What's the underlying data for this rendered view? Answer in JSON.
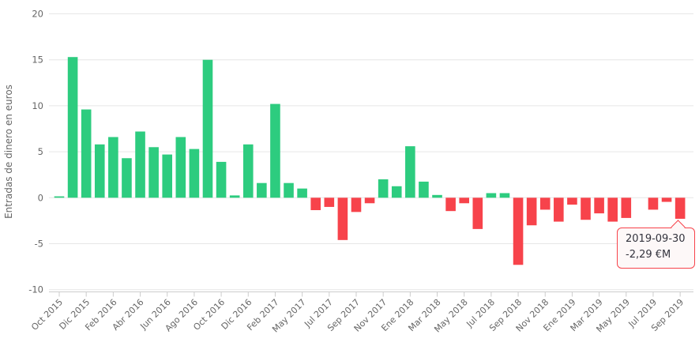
{
  "colors": {
    "positive_bar": "#2dcc7f",
    "negative_bar": "#f7434b",
    "gridline": "#e6e6e6",
    "axis_line": "#cccccc",
    "axis_label": "#666666",
    "tooltip_border": "#f7434b",
    "tooltip_background": "#fdf8f8",
    "tooltip_text": "#33333d"
  },
  "chart_data": {
    "type": "bar",
    "title": "",
    "xlabel": "",
    "ylabel": "Entradas de dinero en euros",
    "ylim": [
      -10,
      20
    ],
    "y_tick_interval": 5,
    "y_ticks": [
      20,
      15,
      10,
      5,
      0,
      -5,
      -10
    ],
    "y_tick_labels": [
      "20",
      "15",
      "10",
      "5",
      "0",
      "-5",
      "-10"
    ],
    "grid": true,
    "legend": false,
    "x_label_rotation": -45,
    "x_labels_every_n_bars": 2,
    "visible_x_tick_labels": [
      "Oct 2015",
      "Dic 2015",
      "Feb 2016",
      "Abr 2016",
      "Jun 2016",
      "Ago 2016",
      "Oct 2016",
      "Dic 2016",
      "Feb 2017",
      "May 2017",
      "Jul 2017",
      "Sep 2017",
      "Nov 2017",
      "Ene 2018",
      "Mar 2018",
      "May 2018",
      "Jul 2018",
      "Sep 2018",
      "Nov 2018",
      "Ene 2019",
      "Mar 2019",
      "May 2019",
      "Jul 2019",
      "Sep 2019"
    ],
    "categories": [
      "Oct 2015",
      "Nov 2015",
      "Dic 2015",
      "Ene 2016",
      "Feb 2016",
      "Mar 2016",
      "Abr 2016",
      "May 2016",
      "Jun 2016",
      "Jul 2016",
      "Ago 2016",
      "Sep 2016",
      "Oct 2016",
      "Nov 2016",
      "Dic 2016",
      "Ene 2017",
      "Feb 2017",
      "Mar 2017",
      "May 2017",
      "Jun 2017",
      "Jul 2017",
      "Ago 2017",
      "Sep 2017",
      "Oct 2017",
      "Nov 2017",
      "Dic 2017",
      "Ene 2018",
      "Feb 2018",
      "Mar 2018",
      "Abr 2018",
      "May 2018",
      "Jun 2018",
      "Jul 2018",
      "Ago 2018",
      "Sep 2018",
      "Oct 2018",
      "Nov 2018",
      "Dic 2018",
      "Ene 2019",
      "Feb 2019",
      "Mar 2019",
      "Abr 2019",
      "May 2019",
      "Jun 2019",
      "Jul 2019",
      "Ago 2019",
      "Sep 2019"
    ],
    "values": [
      0.15,
      15.3,
      9.6,
      5.8,
      6.6,
      4.3,
      7.2,
      5.5,
      4.7,
      6.6,
      5.3,
      15.0,
      3.9,
      0.25,
      5.8,
      1.6,
      10.2,
      1.6,
      1.0,
      -1.35,
      -1.0,
      -4.6,
      -1.55,
      -0.6,
      2.0,
      1.25,
      5.6,
      1.75,
      0.3,
      -1.45,
      -0.6,
      -3.4,
      0.5,
      0.5,
      -7.3,
      -3.0,
      -1.3,
      -2.6,
      -0.75,
      -2.4,
      -1.7,
      -2.6,
      -2.2,
      0,
      -1.3,
      -0.45,
      -2.29
    ],
    "tooltip": {
      "date": "2019-09-30",
      "value": "-2,29 €M",
      "target_category": "Sep 2019"
    }
  }
}
